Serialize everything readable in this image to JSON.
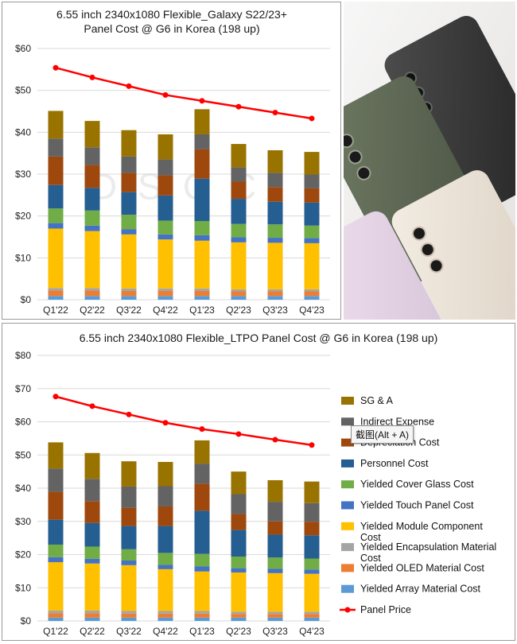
{
  "chart_data": [
    {
      "type": "bar",
      "stacked": true,
      "title_lines": [
        "6.55 inch 2340x1080 Flexible_Galaxy  S22/23+",
        "Panel Cost @ G6  in Korea (198 up)"
      ],
      "categories": [
        "Q1'22",
        "Q2'22",
        "Q3'22",
        "Q4'22",
        "Q1'23",
        "Q2'23",
        "Q3'23",
        "Q4'23"
      ],
      "ylim": [
        0,
        60
      ],
      "yticks": [
        0,
        10,
        20,
        30,
        40,
        50,
        60
      ],
      "ytick_labels": [
        "$0",
        "$10",
        "$20",
        "$30",
        "$40",
        "$50",
        "$60"
      ],
      "grid": true,
      "legend": "none",
      "watermark": "DSCC",
      "series": [
        {
          "name": "Yielded Array Material Cost",
          "color": "#5b9bd5",
          "values": [
            0.9,
            0.9,
            0.9,
            0.9,
            0.9,
            0.9,
            0.9,
            0.9
          ]
        },
        {
          "name": "Yielded OLED Material Cost",
          "color": "#ed7d31",
          "values": [
            1.3,
            1.3,
            1.2,
            1.2,
            1.2,
            1.1,
            1.1,
            1.1
          ]
        },
        {
          "name": "Yielded Encapsulation Material Cost",
          "color": "#a5a5a5",
          "values": [
            0.6,
            0.6,
            0.6,
            0.6,
            0.6,
            0.5,
            0.5,
            0.5
          ]
        },
        {
          "name": "Yielded Module Component Cost",
          "color": "#ffc000",
          "values": [
            14.2,
            13.6,
            12.9,
            11.7,
            11.4,
            11.2,
            11.1,
            11.0
          ]
        },
        {
          "name": "Yielded Touch Panel Cost",
          "color": "#4472c4",
          "values": [
            1.3,
            1.3,
            1.2,
            1.2,
            1.3,
            1.2,
            1.2,
            1.2
          ]
        },
        {
          "name": "Yielded Cover Glass Cost",
          "color": "#70ad47",
          "values": [
            3.5,
            3.6,
            3.5,
            3.3,
            3.4,
            3.2,
            3.2,
            3.0
          ]
        },
        {
          "name": "Personnel Cost",
          "color": "#255e91",
          "values": [
            5.6,
            5.4,
            5.4,
            6.0,
            10.1,
            6.0,
            5.4,
            5.5
          ]
        },
        {
          "name": "Depreciation Cost",
          "color": "#9e480e",
          "values": [
            6.8,
            5.5,
            4.6,
            4.8,
            7.0,
            4.1,
            3.5,
            3.4
          ]
        },
        {
          "name": "Indirect Expense",
          "color": "#636363",
          "values": [
            4.3,
            4.2,
            3.9,
            3.8,
            3.6,
            3.4,
            3.4,
            3.3
          ]
        },
        {
          "name": "SG & A",
          "color": "#997300",
          "values": [
            6.6,
            6.3,
            6.3,
            6.0,
            6.0,
            5.6,
            5.4,
            5.4
          ]
        }
      ],
      "line_series": {
        "name": "Panel Price",
        "color": "#ff0000",
        "values": [
          55.4,
          53.1,
          51.0,
          48.9,
          47.5,
          46.1,
          44.7,
          43.3
        ]
      }
    },
    {
      "type": "bar",
      "stacked": true,
      "title_lines": [
        "6.55 inch 2340x1080 Flexible_LTPO Panel Cost @ G6  in Korea (198 up)"
      ],
      "categories": [
        "Q1'22",
        "Q2'22",
        "Q3'22",
        "Q4'22",
        "Q1'23",
        "Q2'23",
        "Q3'23",
        "Q4'23"
      ],
      "ylim": [
        0,
        80
      ],
      "yticks": [
        0,
        10,
        20,
        30,
        40,
        50,
        60,
        70,
        80
      ],
      "ytick_labels": [
        "$0",
        "$10",
        "$20",
        "$30",
        "$40",
        "$50",
        "$60",
        "$70",
        "$80"
      ],
      "grid": true,
      "legend": "right",
      "legend_entries": [
        {
          "label": "SG & A",
          "color": "#997300",
          "kind": "box"
        },
        {
          "label": "Indirect Expense",
          "color": "#636363",
          "kind": "box"
        },
        {
          "label": "Depreciation Cost",
          "color": "#9e480e",
          "kind": "box"
        },
        {
          "label": "Personnel Cost",
          "color": "#255e91",
          "kind": "box"
        },
        {
          "label": "Yielded Cover Glass Cost",
          "color": "#70ad47",
          "kind": "box"
        },
        {
          "label": "Yielded Touch Panel Cost",
          "color": "#4472c4",
          "kind": "box"
        },
        {
          "label": "Yielded Module Component\nCost",
          "color": "#ffc000",
          "kind": "box"
        },
        {
          "label": "Yielded Encapsulation Material\nCost",
          "color": "#a5a5a5",
          "kind": "box"
        },
        {
          "label": "Yielded OLED Material Cost",
          "color": "#ed7d31",
          "kind": "box"
        },
        {
          "label": "Yielded Array Material Cost",
          "color": "#5b9bd5",
          "kind": "box"
        },
        {
          "label": "Panel Price",
          "color": "#ff0000",
          "kind": "line"
        }
      ],
      "series": [
        {
          "name": "Yielded Array Material Cost",
          "color": "#5b9bd5",
          "values": [
            1.0,
            1.0,
            1.0,
            1.0,
            1.0,
            1.0,
            1.0,
            1.0
          ]
        },
        {
          "name": "Yielded OLED Material Cost",
          "color": "#ed7d31",
          "values": [
            1.3,
            1.3,
            1.2,
            1.2,
            1.2,
            1.1,
            1.1,
            1.1
          ]
        },
        {
          "name": "Yielded Encapsulation Material Cost",
          "color": "#a5a5a5",
          "values": [
            0.8,
            0.8,
            0.8,
            0.8,
            0.8,
            0.7,
            0.7,
            0.7
          ]
        },
        {
          "name": "Yielded Module Component Cost",
          "color": "#ffc000",
          "values": [
            14.6,
            14.2,
            13.8,
            12.6,
            11.9,
            11.8,
            11.6,
            11.4
          ]
        },
        {
          "name": "Yielded Touch Panel Cost",
          "color": "#4472c4",
          "values": [
            1.5,
            1.4,
            1.4,
            1.3,
            1.5,
            1.3,
            1.3,
            1.3
          ]
        },
        {
          "name": "Yielded Cover Glass Cost",
          "color": "#70ad47",
          "values": [
            3.8,
            3.7,
            3.4,
            3.6,
            3.8,
            3.5,
            3.4,
            3.3
          ]
        },
        {
          "name": "Personnel Cost",
          "color": "#255e91",
          "values": [
            7.5,
            7.1,
            7.0,
            8.1,
            13.0,
            8.0,
            6.9,
            7.0
          ]
        },
        {
          "name": "Depreciation Cost",
          "color": "#9e480e",
          "values": [
            8.4,
            6.6,
            5.5,
            5.9,
            8.2,
            4.8,
            4.0,
            4.1
          ]
        },
        {
          "name": "Indirect Expense",
          "color": "#636363",
          "values": [
            7.0,
            6.7,
            6.4,
            6.1,
            6.0,
            6.0,
            5.9,
            5.6
          ]
        },
        {
          "name": "SG & A",
          "color": "#997300",
          "values": [
            7.9,
            7.8,
            7.6,
            7.3,
            7.0,
            6.8,
            6.5,
            6.5
          ]
        }
      ],
      "line_series": {
        "name": "Panel Price",
        "color": "#ff0000",
        "values": [
          67.6,
          64.7,
          62.2,
          59.7,
          57.8,
          56.3,
          54.6,
          53.0
        ]
      }
    }
  ],
  "tooltip": {
    "text": "截图(Alt + A)"
  }
}
